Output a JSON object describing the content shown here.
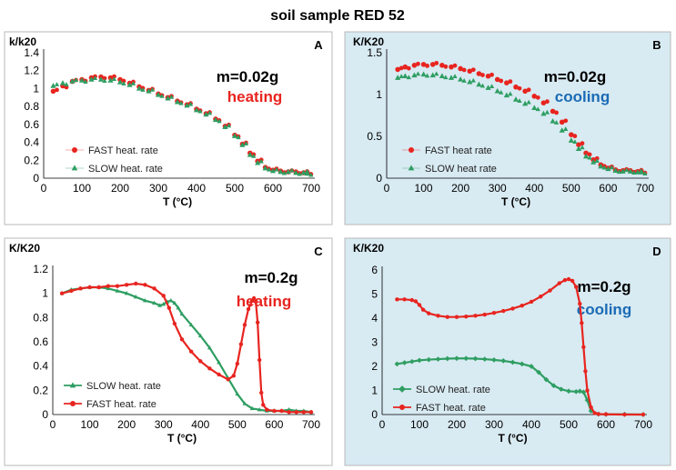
{
  "figure_title": "soil sample RED 52",
  "colors": {
    "fast": "#e8241f",
    "slow": "#2e9e62",
    "cooling_text": "#1a6bb5",
    "heating_text": "#e8241f",
    "cooling_bg": "#d8eaf2",
    "heating_bg": "#ffffff"
  },
  "chart_data": [
    {
      "id": "A",
      "type": "scatter",
      "panel_label": "A",
      "ylabel": "k/k20",
      "xlabel": "T (°C)",
      "xlim": [
        0,
        700
      ],
      "ylim": [
        0,
        1.4
      ],
      "xticks": [
        "0",
        "100",
        "200",
        "300",
        "400",
        "500",
        "600",
        "700"
      ],
      "yticks": [
        "0",
        "0.2",
        "0.4",
        "0.6",
        "0.8",
        "1",
        "1.2",
        "1.4"
      ],
      "annotation_mass": "m=0.02g",
      "annotation_mode": "heating",
      "mode_color": "#e8241f",
      "legend": [
        "FAST heat. rate",
        "SLOW heat. rate"
      ],
      "series": [
        {
          "name": "FAST heat. rate",
          "marker": "circle",
          "color": "#e8241f",
          "x": [
            25,
            50,
            75,
            100,
            125,
            150,
            175,
            200,
            225,
            250,
            275,
            300,
            325,
            350,
            375,
            400,
            425,
            450,
            475,
            500,
            520,
            540,
            560,
            580,
            600,
            620,
            640,
            660,
            680,
            690
          ],
          "y": [
            0.97,
            1.03,
            1.08,
            1.1,
            1.12,
            1.13,
            1.12,
            1.1,
            1.06,
            1.02,
            0.98,
            0.94,
            0.9,
            0.86,
            0.82,
            0.77,
            0.72,
            0.66,
            0.58,
            0.48,
            0.38,
            0.28,
            0.19,
            0.12,
            0.09,
            0.08,
            0.07,
            0.07,
            0.06,
            0.06
          ]
        },
        {
          "name": "SLOW heat. rate",
          "marker": "triangle",
          "color": "#2e9e62",
          "x": [
            25,
            50,
            75,
            100,
            125,
            150,
            175,
            200,
            225,
            250,
            275,
            300,
            325,
            350,
            375,
            400,
            425,
            450,
            475,
            500,
            520,
            540,
            560,
            580,
            600,
            620,
            640,
            660,
            680,
            690
          ],
          "y": [
            1.03,
            1.06,
            1.08,
            1.09,
            1.1,
            1.1,
            1.09,
            1.07,
            1.04,
            1.0,
            0.97,
            0.93,
            0.89,
            0.85,
            0.81,
            0.76,
            0.71,
            0.65,
            0.57,
            0.47,
            0.37,
            0.26,
            0.17,
            0.11,
            0.08,
            0.07,
            0.07,
            0.06,
            0.06,
            0.05
          ]
        }
      ]
    },
    {
      "id": "B",
      "type": "scatter",
      "panel_label": "B",
      "ylabel": "K/K20",
      "xlabel": "T (°C)",
      "xlim": [
        0,
        700
      ],
      "ylim": [
        0,
        1.5
      ],
      "xticks": [
        "0",
        "100",
        "200",
        "300",
        "400",
        "500",
        "600",
        "700"
      ],
      "yticks": [
        "0",
        "0.5",
        "1",
        "1.5"
      ],
      "annotation_mass": "m=0.02g",
      "annotation_mode": "cooling",
      "mode_color": "#1a6bb5",
      "legend": [
        "FAST heat rate",
        "SLOW heat rate"
      ],
      "series": [
        {
          "name": "FAST heat rate",
          "marker": "circle",
          "color": "#e8241f",
          "x": [
            30,
            50,
            75,
            100,
            125,
            150,
            175,
            200,
            225,
            250,
            275,
            300,
            325,
            350,
            375,
            400,
            425,
            450,
            475,
            500,
            520,
            540,
            560,
            580,
            600,
            620,
            640,
            660,
            680,
            690
          ],
          "y": [
            1.3,
            1.33,
            1.35,
            1.36,
            1.36,
            1.35,
            1.33,
            1.31,
            1.28,
            1.25,
            1.22,
            1.18,
            1.14,
            1.09,
            1.04,
            0.98,
            0.9,
            0.8,
            0.67,
            0.52,
            0.4,
            0.3,
            0.22,
            0.16,
            0.12,
            0.1,
            0.09,
            0.09,
            0.08,
            0.08
          ]
        },
        {
          "name": "SLOW heat rate",
          "marker": "triangle",
          "color": "#2e9e62",
          "x": [
            30,
            50,
            75,
            100,
            125,
            150,
            175,
            200,
            225,
            250,
            275,
            300,
            325,
            350,
            375,
            400,
            425,
            450,
            475,
            500,
            520,
            540,
            560,
            580,
            600,
            620,
            640,
            660,
            680,
            690
          ],
          "y": [
            1.2,
            1.22,
            1.23,
            1.24,
            1.23,
            1.22,
            1.2,
            1.18,
            1.15,
            1.12,
            1.08,
            1.04,
            0.99,
            0.94,
            0.89,
            0.84,
            0.77,
            0.68,
            0.57,
            0.45,
            0.35,
            0.26,
            0.19,
            0.14,
            0.11,
            0.09,
            0.08,
            0.08,
            0.07,
            0.07
          ]
        }
      ]
    },
    {
      "id": "C",
      "type": "line",
      "panel_label": "C",
      "ylabel": "K/K20",
      "xlabel": "T (°C)",
      "xlim": [
        0,
        700
      ],
      "ylim": [
        0,
        1.2
      ],
      "xticks": [
        "0",
        "100",
        "200",
        "300",
        "400",
        "500",
        "600",
        "700"
      ],
      "yticks": [
        "0",
        "0.2",
        "0.4",
        "0.6",
        "0.8",
        "1",
        "1.2"
      ],
      "annotation_mass": "m=0.2g",
      "annotation_mode": "heating",
      "mode_color": "#e8241f",
      "legend": [
        "SLOW heat. rate",
        "FAST heat. rate"
      ],
      "series": [
        {
          "name": "SLOW heat. rate",
          "marker": "triangle",
          "color": "#2e9e62",
          "x": [
            25,
            50,
            75,
            100,
            125,
            150,
            175,
            200,
            225,
            250,
            275,
            290,
            300,
            310,
            320,
            330,
            340,
            350,
            375,
            400,
            425,
            450,
            475,
            500,
            520,
            540,
            560,
            580,
            600,
            620,
            640,
            660,
            680,
            700
          ],
          "y": [
            1.0,
            1.03,
            1.04,
            1.05,
            1.05,
            1.04,
            1.02,
            1.0,
            0.97,
            0.94,
            0.92,
            0.9,
            0.91,
            0.93,
            0.94,
            0.92,
            0.88,
            0.83,
            0.74,
            0.65,
            0.55,
            0.43,
            0.3,
            0.17,
            0.09,
            0.05,
            0.04,
            0.03,
            0.03,
            0.03,
            0.04,
            0.03,
            0.03,
            0.02
          ]
        },
        {
          "name": "FAST heat. rate",
          "marker": "circle",
          "color": "#e8241f",
          "x": [
            25,
            50,
            75,
            100,
            125,
            150,
            175,
            200,
            225,
            250,
            275,
            300,
            315,
            330,
            350,
            375,
            400,
            425,
            450,
            475,
            490,
            500,
            510,
            520,
            530,
            540,
            545,
            550,
            555,
            560,
            565,
            570,
            580,
            600,
            620,
            640,
            660,
            680,
            700
          ],
          "y": [
            1.0,
            1.02,
            1.04,
            1.05,
            1.05,
            1.06,
            1.06,
            1.07,
            1.08,
            1.07,
            1.04,
            0.98,
            0.88,
            0.75,
            0.62,
            0.52,
            0.44,
            0.38,
            0.33,
            0.29,
            0.32,
            0.42,
            0.58,
            0.74,
            0.87,
            0.94,
            0.96,
            0.93,
            0.76,
            0.45,
            0.18,
            0.08,
            0.04,
            0.03,
            0.03,
            0.02,
            0.02,
            0.02,
            0.02
          ]
        }
      ]
    },
    {
      "id": "D",
      "type": "line",
      "panel_label": "D",
      "ylabel": "K/K20",
      "xlabel": "T (°C)",
      "xlim": [
        0,
        700
      ],
      "ylim": [
        0,
        6
      ],
      "xticks": [
        "0",
        "100",
        "200",
        "300",
        "400",
        "500",
        "600",
        "700"
      ],
      "yticks": [
        "0",
        "1",
        "2",
        "3",
        "4",
        "5",
        "6"
      ],
      "annotation_mass": "m=0.2g",
      "annotation_mode": "cooling",
      "mode_color": "#1a6bb5",
      "legend": [
        "SLOW heat. rate",
        "FAST heat. rate"
      ],
      "series": [
        {
          "name": "SLOW heat. rate",
          "marker": "diamond",
          "color": "#2e9e62",
          "x": [
            40,
            60,
            80,
            100,
            125,
            150,
            175,
            200,
            225,
            250,
            275,
            300,
            325,
            350,
            375,
            400,
            420,
            440,
            460,
            480,
            500,
            520,
            530,
            540,
            550,
            560,
            580,
            600,
            650,
            700
          ],
          "y": [
            2.1,
            2.15,
            2.2,
            2.25,
            2.28,
            2.3,
            2.32,
            2.33,
            2.33,
            2.32,
            2.3,
            2.27,
            2.23,
            2.17,
            2.1,
            2.0,
            1.75,
            1.45,
            1.2,
            1.05,
            0.97,
            0.95,
            0.97,
            0.93,
            0.6,
            0.15,
            0.02,
            0.01,
            0.01,
            0.0
          ]
        },
        {
          "name": "FAST heat. rate",
          "marker": "circle",
          "color": "#e8241f",
          "x": [
            40,
            60,
            80,
            90,
            100,
            110,
            125,
            150,
            175,
            200,
            225,
            250,
            275,
            300,
            325,
            350,
            375,
            400,
            425,
            450,
            475,
            490,
            500,
            510,
            520,
            530,
            535,
            540,
            545,
            550,
            560,
            570,
            580,
            600,
            650,
            700
          ],
          "y": [
            4.78,
            4.78,
            4.75,
            4.7,
            4.55,
            4.35,
            4.2,
            4.1,
            4.05,
            4.05,
            4.07,
            4.1,
            4.15,
            4.22,
            4.3,
            4.4,
            4.52,
            4.68,
            4.9,
            5.15,
            5.45,
            5.58,
            5.62,
            5.55,
            5.3,
            4.6,
            3.8,
            2.8,
            1.8,
            1.0,
            0.3,
            0.06,
            0.02,
            0.01,
            0.0,
            0.0
          ]
        }
      ]
    }
  ]
}
